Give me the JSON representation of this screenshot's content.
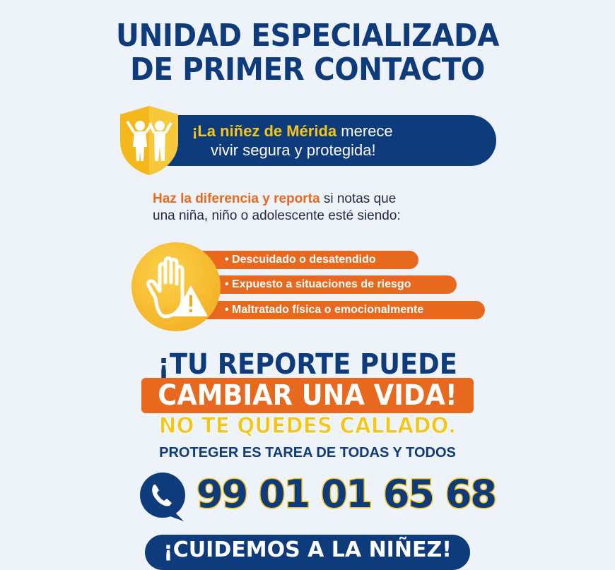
{
  "title": {
    "line1": "UNIDAD ESPECIALIZADA",
    "line2": "DE PRIMER CONTACTO"
  },
  "banner": {
    "highlight": "¡La niñez de Mérida",
    "text1": " merece",
    "text2": "vivir segura y protegida!"
  },
  "intro": {
    "highlight": "Haz la diferencia y reporta",
    "text1": " si notas que",
    "text2": "una niña, niño o adolescente esté siendo:"
  },
  "items": [
    "• Descuidado o desatendido",
    "• Expuesto a situaciones de riesgo",
    "• Maltratado física o emocionalmente"
  ],
  "cta": {
    "line1": "¡TU REPORTE PUEDE",
    "line2": "CAMBIAR UNA VIDA!",
    "line3": "NO TE QUEDES CALLADO.",
    "line4": "PROTEGER ES TAREA DE TODAS Y TODOS"
  },
  "phone": {
    "number": "99 01 01 65 68",
    "icon": "phone-chat-icon"
  },
  "footer": {
    "text": "¡CUIDEMOS A LA NIÑEZ!"
  },
  "colors": {
    "navy": "#0e3b7c",
    "orange": "#e8691e",
    "yellow": "#f5c518",
    "background": "#eef3fa"
  }
}
